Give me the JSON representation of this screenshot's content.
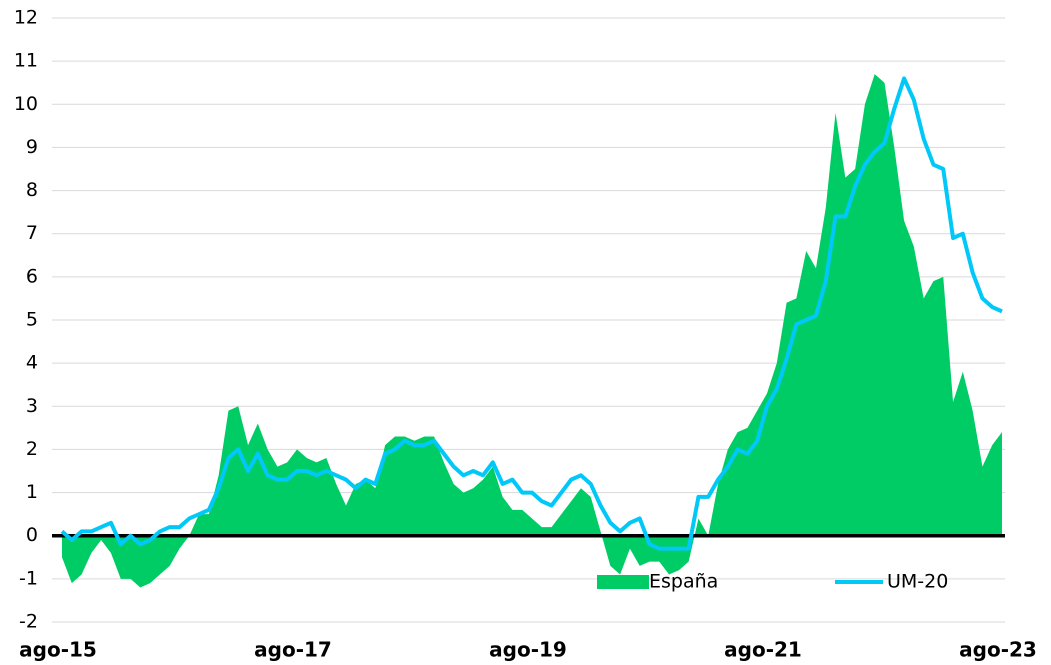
{
  "chart_data": {
    "type": "area-line",
    "categories": [
      "ago-15",
      null,
      null,
      null,
      null,
      null,
      null,
      null,
      null,
      null,
      null,
      null,
      null,
      null,
      null,
      null,
      null,
      null,
      null,
      null,
      null,
      null,
      null,
      null,
      "ago-17",
      null,
      null,
      null,
      null,
      null,
      null,
      null,
      null,
      null,
      null,
      null,
      null,
      null,
      null,
      null,
      null,
      null,
      null,
      null,
      null,
      null,
      null,
      null,
      "ago-19",
      null,
      null,
      null,
      null,
      null,
      null,
      null,
      null,
      null,
      null,
      null,
      null,
      null,
      null,
      null,
      null,
      null,
      null,
      null,
      null,
      null,
      null,
      null,
      "ago-21",
      null,
      null,
      null,
      null,
      null,
      null,
      null,
      null,
      null,
      null,
      null,
      null,
      null,
      null,
      null,
      null,
      null,
      null,
      null,
      null,
      null,
      null,
      null,
      "ago-23"
    ],
    "series": [
      {
        "name": "España",
        "kind": "area",
        "color": "#00cc66",
        "values": [
          -0.5,
          -1.1,
          -0.9,
          -0.4,
          -0.1,
          -0.4,
          -1.0,
          -1.0,
          -1.2,
          -1.1,
          -0.9,
          -0.7,
          -0.3,
          0.0,
          0.5,
          0.5,
          1.4,
          2.9,
          3.0,
          2.1,
          2.6,
          2.0,
          1.6,
          1.7,
          2.0,
          1.8,
          1.7,
          1.8,
          1.2,
          0.7,
          1.2,
          1.3,
          1.1,
          2.1,
          2.3,
          2.3,
          2.2,
          2.3,
          2.3,
          1.7,
          1.2,
          1.0,
          1.1,
          1.3,
          1.6,
          0.9,
          0.6,
          0.6,
          0.4,
          0.2,
          0.2,
          0.5,
          0.8,
          1.1,
          0.9,
          0.1,
          -0.7,
          -0.9,
          -0.3,
          -0.7,
          -0.6,
          -0.6,
          -0.9,
          -0.8,
          -0.6,
          0.4,
          0.0,
          1.2,
          2.0,
          2.4,
          2.5,
          2.9,
          3.3,
          4.0,
          5.4,
          5.5,
          6.6,
          6.2,
          7.6,
          9.8,
          8.3,
          8.5,
          10.0,
          10.7,
          10.5,
          9.0,
          7.3,
          6.7,
          5.5,
          5.9,
          6.0,
          3.1,
          3.8,
          2.9,
          1.6,
          2.1,
          2.4
        ]
      },
      {
        "name": "UM-20",
        "kind": "line",
        "color": "#00c8f8",
        "values": [
          0.1,
          -0.1,
          0.1,
          0.1,
          0.2,
          0.3,
          -0.2,
          0.0,
          -0.2,
          -0.1,
          0.1,
          0.2,
          0.2,
          0.4,
          0.5,
          0.6,
          1.1,
          1.8,
          2.0,
          1.5,
          1.9,
          1.4,
          1.3,
          1.3,
          1.5,
          1.5,
          1.4,
          1.5,
          1.4,
          1.3,
          1.1,
          1.3,
          1.2,
          1.9,
          2.0,
          2.2,
          2.1,
          2.1,
          2.2,
          1.9,
          1.6,
          1.4,
          1.5,
          1.4,
          1.7,
          1.2,
          1.3,
          1.0,
          1.0,
          0.8,
          0.7,
          1.0,
          1.3,
          1.4,
          1.2,
          0.7,
          0.3,
          0.1,
          0.3,
          0.4,
          -0.2,
          -0.3,
          -0.3,
          -0.3,
          -0.3,
          0.9,
          0.9,
          1.3,
          1.6,
          2.0,
          1.9,
          2.2,
          3.0,
          3.4,
          4.1,
          4.9,
          5.0,
          5.1,
          5.9,
          7.4,
          7.4,
          8.1,
          8.6,
          8.9,
          9.1,
          9.9,
          10.6,
          10.1,
          9.2,
          8.6,
          8.5,
          6.9,
          7.0,
          6.1,
          5.5,
          5.3,
          5.2
        ]
      }
    ],
    "ylim": [
      -2,
      12
    ],
    "yticks": [
      -2,
      -1,
      0,
      1,
      2,
      3,
      4,
      5,
      6,
      7,
      8,
      9,
      10,
      11,
      12
    ],
    "grid": true,
    "legend": "lower center"
  }
}
